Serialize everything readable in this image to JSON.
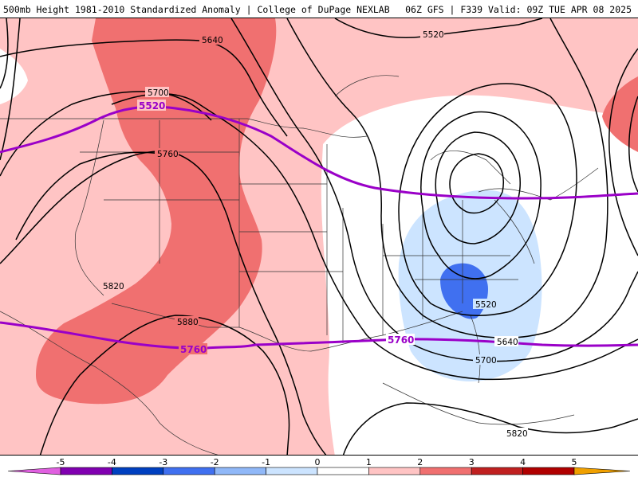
{
  "header": {
    "title_left": "500mb Height 1981-2010 Standardized Anomaly | College of DuPage NEXLAB",
    "title_right": "06Z GFS | F339 Valid: 09Z TUE APR 08 2025"
  },
  "contour_labels": {
    "c5640_nw": "5640",
    "c5520_top": "5520",
    "c5700_w": "5700",
    "c5760_w": "5760",
    "c5820_sw": "5820",
    "c5880_sw": "5880",
    "c5520_se": "5520",
    "c5640_se": "5640",
    "c5700_se": "5700",
    "c5820_s": "5820"
  },
  "purple_labels": {
    "p5520": "5520",
    "p5760_w": "5760",
    "p5760_e": "5760"
  },
  "colorbar": {
    "ticks": [
      "-5",
      "-4",
      "-3",
      "-2",
      "-1",
      "0",
      "1",
      "2",
      "3",
      "4",
      "5"
    ],
    "colors": {
      "m5": "#e060e0",
      "m4": "#8000b0",
      "m3": "#0040c0",
      "m2": "#4070f0",
      "m1": "#90b8f8",
      "m0": "#cce4ff",
      "p0": "#ffffff",
      "p1": "#ffc4c4",
      "p2": "#f07070",
      "p3": "#c02020",
      "p4": "#b00000",
      "p5": "#f0a000"
    }
  }
}
